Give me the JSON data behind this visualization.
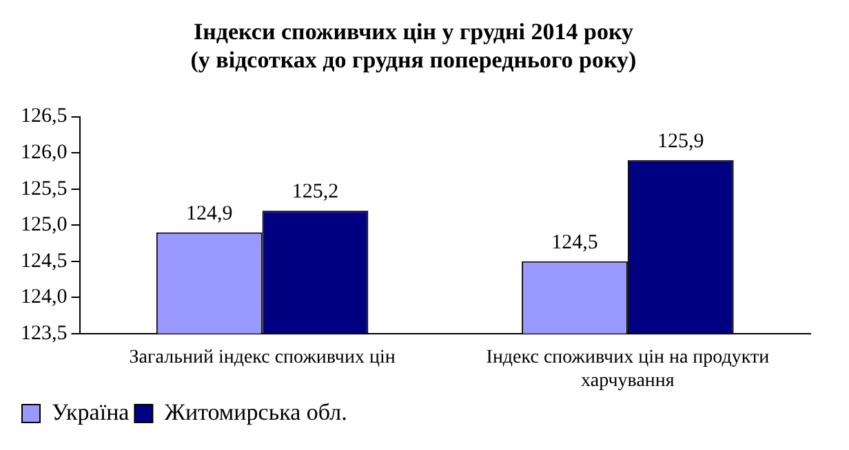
{
  "chart_data": {
    "type": "bar",
    "title": [
      "Індекси споживчих цін у грудні 2014 року",
      "(у відсотках до грудня попереднього року)"
    ],
    "categories": [
      "Загальний індекс споживчих цін",
      "Індекс споживчих цін на продукти харчування"
    ],
    "series": [
      {
        "name": "Україна",
        "color": "#9999ff",
        "values": [
          124.9,
          124.5
        ],
        "value_labels": [
          "124,9",
          "124,5"
        ]
      },
      {
        "name": "Житомирська обл.",
        "color": "#000080",
        "values": [
          125.2,
          125.9
        ],
        "value_labels": [
          "125,2",
          "125,9"
        ]
      }
    ],
    "ylim": [
      123.5,
      126.5
    ],
    "yticks": [
      {
        "value": 123.5,
        "label": "123,5"
      },
      {
        "value": 124,
        "label": "124,0"
      },
      {
        "value": 124.5,
        "label": "124,5"
      },
      {
        "value": 125,
        "label": "125,0"
      },
      {
        "value": 125.5,
        "label": "125,5"
      },
      {
        "value": 126,
        "label": "126,0"
      },
      {
        "value": 126.5,
        "label": "126,5"
      }
    ],
    "grid": false,
    "legend": "bottom"
  }
}
